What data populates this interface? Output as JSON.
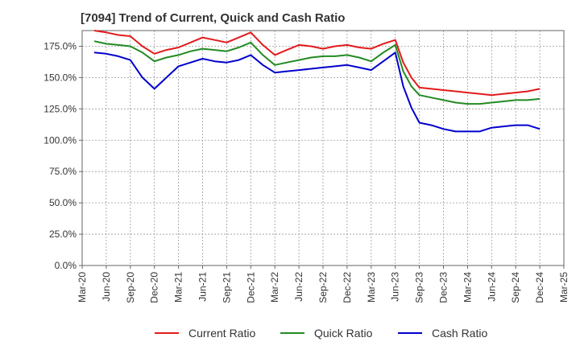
{
  "chart_data": {
    "type": "line",
    "title": "[7094]  Trend of Current, Quick and Cash Ratio",
    "xlabel": "",
    "ylabel": "",
    "ylim": [
      0,
      187.5
    ],
    "y_ticks": [
      0,
      25,
      50,
      75,
      100,
      125,
      150,
      175
    ],
    "y_tick_labels": [
      "0.0%",
      "25.0%",
      "50.0%",
      "75.0%",
      "100.0%",
      "125.0%",
      "150.0%",
      "175.0%"
    ],
    "x_tick_labels": [
      "Mar-20",
      "Jun-20",
      "Sep-20",
      "Dec-20",
      "Mar-21",
      "Jun-21",
      "Sep-21",
      "Dec-21",
      "Mar-22",
      "Jun-22",
      "Sep-22",
      "Dec-22",
      "Mar-23",
      "Jun-23",
      "Sep-23",
      "Dec-23",
      "Mar-24",
      "Jun-24",
      "Sep-24",
      "Dec-24",
      "Mar-25"
    ],
    "grid": true,
    "legend_position": "bottom",
    "x": [
      0.5,
      1,
      1.5,
      2,
      2.5,
      3,
      3.5,
      4,
      4.5,
      5,
      5.5,
      6,
      6.5,
      7,
      7.5,
      8,
      8.5,
      9,
      9.5,
      10,
      10.5,
      11,
      11.5,
      12,
      12.5,
      13,
      13.33,
      13.67,
      14,
      14.5,
      15,
      15.5,
      16,
      16.5,
      17,
      17.5,
      18,
      18.5,
      19
    ],
    "series": [
      {
        "name": "Current Ratio",
        "color": "#e31a1c",
        "values": [
          187.5,
          186,
          184,
          183,
          175,
          169,
          172,
          174,
          178,
          182,
          180,
          178,
          182,
          186,
          176,
          168,
          172,
          176,
          175,
          173,
          175,
          176,
          174,
          173,
          177,
          180,
          162,
          150,
          142,
          141,
          140,
          139,
          138,
          137,
          136,
          137,
          138,
          139,
          141
        ]
      },
      {
        "name": "Quick Ratio",
        "color": "#228b22",
        "values": [
          179,
          177,
          176,
          175,
          170,
          163,
          166,
          168,
          171,
          173,
          172,
          171,
          174,
          178,
          168,
          160,
          162,
          164,
          166,
          167,
          167,
          168,
          166,
          163,
          170,
          176,
          155,
          143,
          136,
          134,
          132,
          130,
          129,
          129,
          130,
          131,
          132,
          132,
          133
        ]
      },
      {
        "name": "Cash Ratio",
        "color": "#0000cd",
        "values": [
          170,
          169,
          167,
          164,
          150,
          141,
          150,
          159,
          162,
          165,
          163,
          162,
          164,
          168,
          160,
          154,
          155,
          156,
          157,
          158,
          159,
          160,
          158,
          156,
          163,
          170,
          143,
          126,
          114,
          112,
          109,
          107,
          107,
          107,
          110,
          111,
          112,
          112,
          109
        ]
      }
    ]
  }
}
